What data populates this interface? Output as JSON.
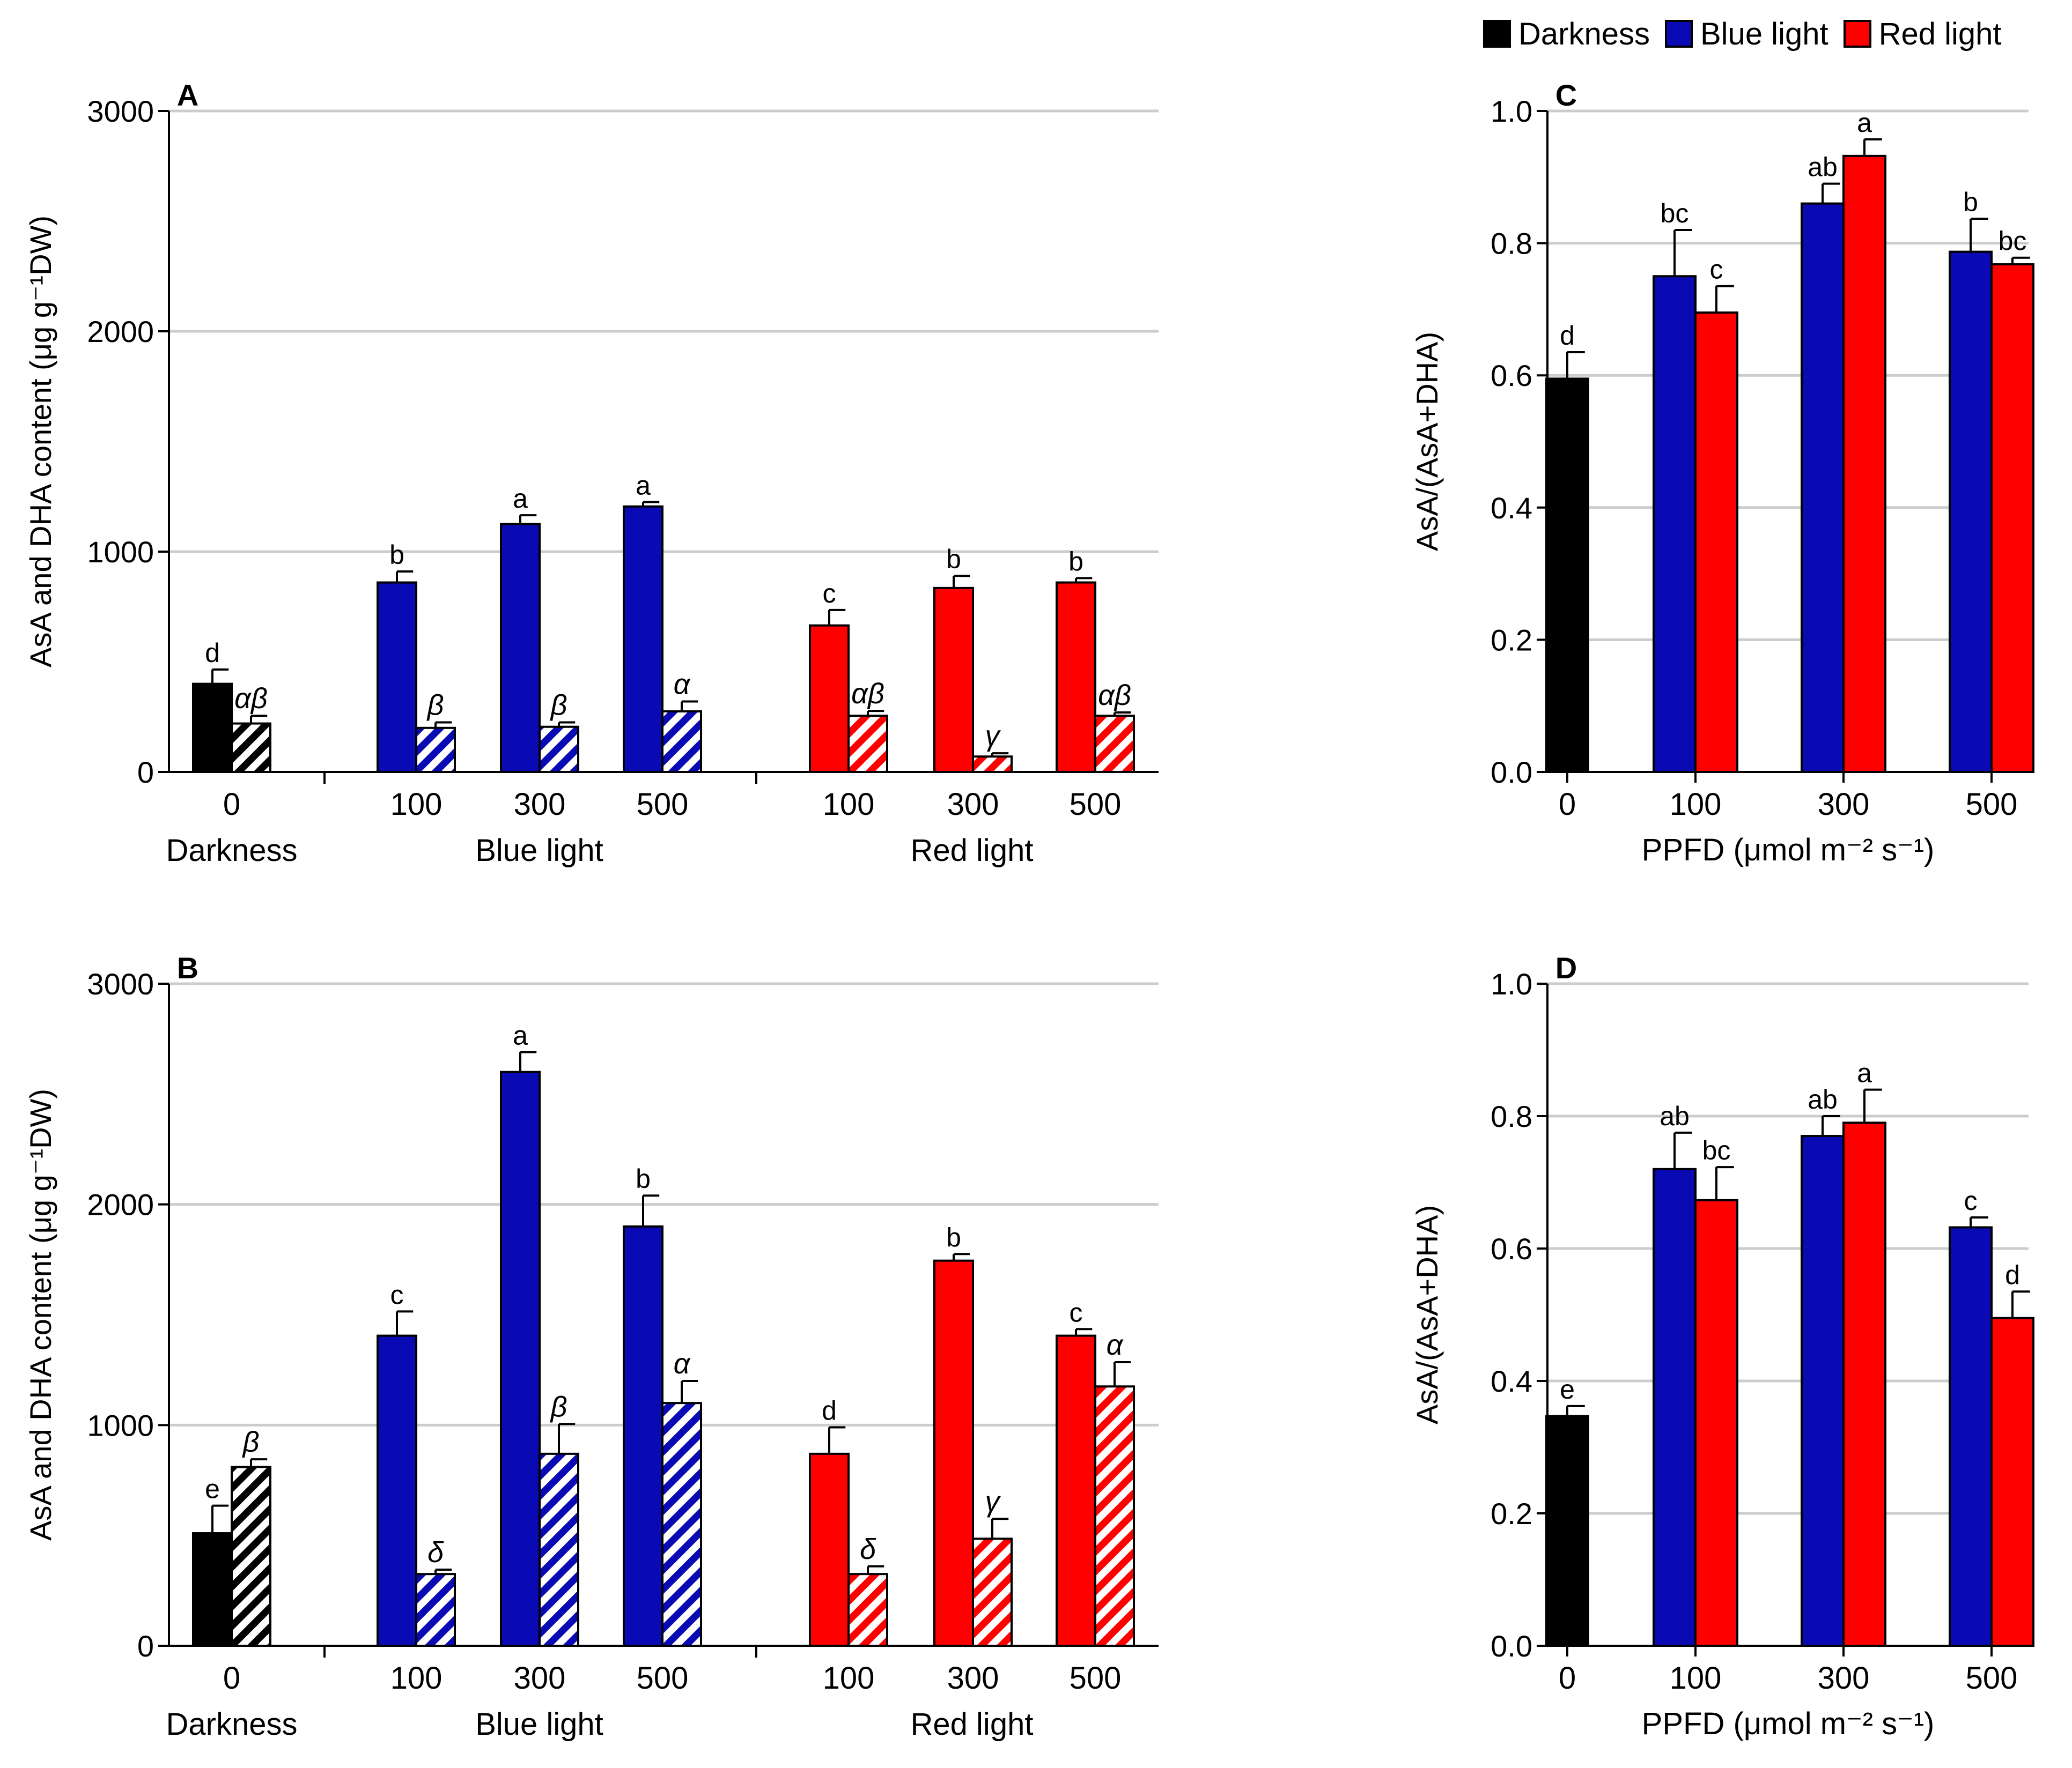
{
  "legend": [
    {
      "label": "Darkness",
      "color": "#000000"
    },
    {
      "label": "Blue light",
      "color": "#0a0ab4"
    },
    {
      "label": "Red light",
      "color": "#ff0000"
    }
  ],
  "chart_data": [
    {
      "panel": "A",
      "type": "bar",
      "ylabel": "AsA and DHA content (μg g⁻¹DW)",
      "ylim": [
        0,
        3000
      ],
      "yticks": [
        "0",
        "1000",
        "2000",
        "3000"
      ],
      "grid": true,
      "groups": [
        {
          "label": "Darkness",
          "color": "#000000",
          "categories": [
            {
              "x": "0",
              "asa": 400,
              "asa_err": 65,
              "asa_sig": "d",
              "dha": 220,
              "dha_err": 35,
              "dha_sig": "αβ"
            }
          ]
        },
        {
          "label": "Blue light",
          "color": "#0a0ab4",
          "categories": [
            {
              "x": "100",
              "asa": 860,
              "asa_err": 50,
              "asa_sig": "b",
              "dha": 200,
              "dha_err": 25,
              "dha_sig": "β"
            },
            {
              "x": "300",
              "asa": 1125,
              "asa_err": 40,
              "asa_sig": "a",
              "dha": 205,
              "dha_err": 20,
              "dha_sig": "β"
            },
            {
              "x": "500",
              "asa": 1205,
              "asa_err": 20,
              "asa_sig": "a",
              "dha": 275,
              "dha_err": 45,
              "dha_sig": "α"
            }
          ]
        },
        {
          "label": "Red light",
          "color": "#ff0000",
          "categories": [
            {
              "x": "100",
              "asa": 665,
              "asa_err": 70,
              "asa_sig": "c",
              "dha": 255,
              "dha_err": 22,
              "dha_sig": "αβ"
            },
            {
              "x": "300",
              "asa": 835,
              "asa_err": 55,
              "asa_sig": "b",
              "dha": 70,
              "dha_err": 15,
              "dha_sig": "γ"
            },
            {
              "x": "500",
              "asa": 860,
              "asa_err": 20,
              "asa_sig": "b",
              "dha": 255,
              "dha_err": 15,
              "dha_sig": "αβ"
            }
          ]
        }
      ]
    },
    {
      "panel": "B",
      "type": "bar",
      "ylabel": "AsA and DHA content (μg g⁻¹DW)",
      "ylim": [
        0,
        3000
      ],
      "yticks": [
        "0",
        "1000",
        "2000",
        "3000"
      ],
      "grid": true,
      "groups": [
        {
          "label": "Darkness",
          "color": "#000000",
          "categories": [
            {
              "x": "0",
              "asa": 510,
              "asa_err": 125,
              "asa_sig": "e",
              "dha": 810,
              "dha_err": 35,
              "dha_sig": "β"
            }
          ]
        },
        {
          "label": "Blue light",
          "color": "#0a0ab4",
          "categories": [
            {
              "x": "100",
              "asa": 1405,
              "asa_err": 110,
              "asa_sig": "c",
              "dha": 325,
              "dha_err": 20,
              "dha_sig": "δ"
            },
            {
              "x": "300",
              "asa": 2600,
              "asa_err": 90,
              "asa_sig": "a",
              "dha": 870,
              "dha_err": 135,
              "dha_sig": "β"
            },
            {
              "x": "500",
              "asa": 1900,
              "asa_err": 140,
              "asa_sig": "b",
              "dha": 1100,
              "dha_err": 100,
              "dha_sig": "α"
            }
          ]
        },
        {
          "label": "Red light",
          "color": "#ff0000",
          "categories": [
            {
              "x": "100",
              "asa": 870,
              "asa_err": 120,
              "asa_sig": "d",
              "dha": 325,
              "dha_err": 35,
              "dha_sig": "δ"
            },
            {
              "x": "300",
              "asa": 1745,
              "asa_err": 30,
              "asa_sig": "b",
              "dha": 485,
              "dha_err": 90,
              "dha_sig": "γ"
            },
            {
              "x": "500",
              "asa": 1405,
              "asa_err": 30,
              "asa_sig": "c",
              "dha": 1175,
              "dha_err": 110,
              "dha_sig": "α"
            }
          ]
        }
      ]
    },
    {
      "panel": "C",
      "type": "bar",
      "ylabel": "AsA/(AsA+DHA)",
      "xlabel": "PPFD (μmol m⁻² s⁻¹)",
      "ylim": [
        0,
        1.0
      ],
      "yticks": [
        "0.0",
        "0.2",
        "0.4",
        "0.6",
        "0.8",
        "1.0"
      ],
      "grid": true,
      "categories": [
        "0",
        "100",
        "300",
        "500"
      ],
      "series": [
        {
          "name": "Darkness",
          "color": "#000000",
          "values": [
            0.595,
            null,
            null,
            null
          ],
          "errors": [
            0.04,
            null,
            null,
            null
          ],
          "sig": [
            "d",
            null,
            null,
            null
          ]
        },
        {
          "name": "Blue light",
          "color": "#0a0ab4",
          "values": [
            null,
            0.75,
            0.86,
            0.787
          ],
          "errors": [
            null,
            0.07,
            0.03,
            0.05
          ],
          "sig": [
            null,
            "bc",
            "ab",
            "b"
          ]
        },
        {
          "name": "Red light",
          "color": "#ff0000",
          "values": [
            null,
            0.695,
            0.932,
            0.768
          ],
          "errors": [
            null,
            0.04,
            0.025,
            0.01
          ],
          "sig": [
            null,
            "c",
            "a",
            "bc"
          ]
        }
      ]
    },
    {
      "panel": "D",
      "type": "bar",
      "ylabel": "AsA/(AsA+DHA)",
      "xlabel": "PPFD (μmol m⁻² s⁻¹)",
      "ylim": [
        0,
        1.0
      ],
      "yticks": [
        "0.0",
        "0.2",
        "0.4",
        "0.6",
        "0.8",
        "1.0"
      ],
      "grid": true,
      "categories": [
        "0",
        "100",
        "300",
        "500"
      ],
      "series": [
        {
          "name": "Darkness",
          "color": "#000000",
          "values": [
            0.347,
            null,
            null,
            null
          ],
          "errors": [
            0.015,
            null,
            null,
            null
          ],
          "sig": [
            "e",
            null,
            null,
            null
          ]
        },
        {
          "name": "Blue light",
          "color": "#0a0ab4",
          "values": [
            null,
            0.72,
            0.77,
            0.632
          ],
          "errors": [
            null,
            0.055,
            0.03,
            0.015
          ],
          "sig": [
            null,
            "ab",
            "ab",
            "c"
          ]
        },
        {
          "name": "Red light",
          "color": "#ff0000",
          "values": [
            null,
            0.673,
            0.79,
            0.495
          ],
          "errors": [
            null,
            0.05,
            0.05,
            0.04
          ],
          "sig": [
            null,
            "bc",
            "a",
            "d"
          ]
        }
      ]
    }
  ]
}
